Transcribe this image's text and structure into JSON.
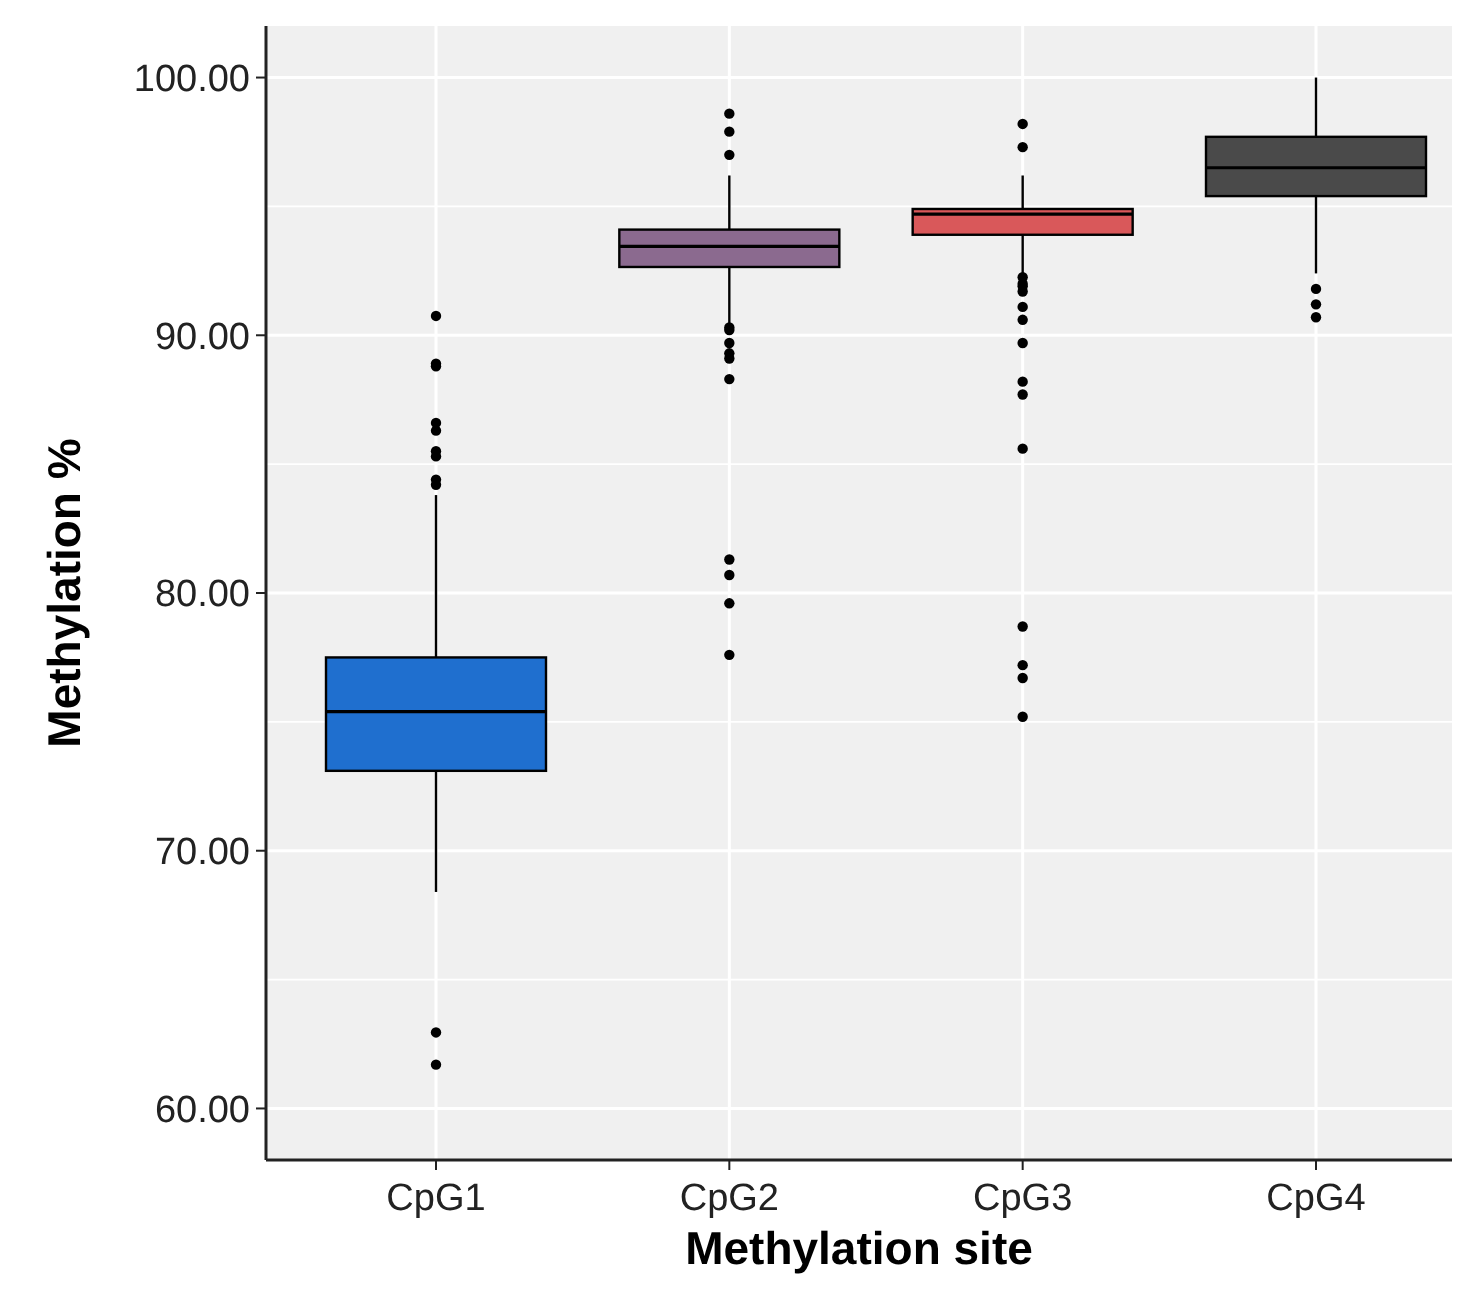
{
  "chart_data": {
    "type": "box",
    "xlabel": "Methylation site",
    "ylabel": "Methylation %",
    "categories": [
      "CpG1",
      "CpG2",
      "CpG3",
      "CpG4"
    ],
    "colors": [
      "#1f6fcf",
      "#8b6a8f",
      "#d9585a",
      "#4a4a4a"
    ],
    "boxes": [
      {
        "low": 68.4,
        "q1": 73.1,
        "median": 75.4,
        "q3": 77.5,
        "high": 83.8,
        "outliers": [
          90.75,
          88.9,
          88.8,
          86.6,
          86.3,
          85.5,
          85.3,
          84.4,
          84.2,
          62.95,
          61.7
        ]
      },
      {
        "low": 90.4,
        "q1": 92.65,
        "median": 93.45,
        "q3": 94.1,
        "high": 96.2,
        "outliers": [
          98.6,
          97.9,
          97.0,
          90.3,
          90.2,
          89.7,
          89.3,
          89.1,
          88.3,
          81.3,
          80.7,
          79.6,
          77.6
        ]
      },
      {
        "low": 92.4,
        "q1": 93.9,
        "median": 94.7,
        "q3": 94.9,
        "high": 96.2,
        "outliers": [
          98.2,
          97.3,
          92.25,
          92.0,
          91.9,
          91.7,
          91.1,
          90.6,
          89.7,
          88.2,
          87.7,
          85.6,
          78.7,
          77.2,
          76.7,
          75.2
        ]
      },
      {
        "low": 92.4,
        "q1": 95.4,
        "median": 96.5,
        "q3": 97.7,
        "high": 100,
        "outliers": [
          91.8,
          91.2,
          90.7
        ]
      }
    ],
    "ylim": [
      58,
      102
    ],
    "yticks": [
      {
        "value": 60,
        "label": "60.00"
      },
      {
        "value": 70,
        "label": "70.00"
      },
      {
        "value": 80,
        "label": "80.00"
      },
      {
        "value": 90,
        "label": "90.00"
      },
      {
        "value": 100,
        "label": "100.00"
      }
    ],
    "grid": true
  }
}
